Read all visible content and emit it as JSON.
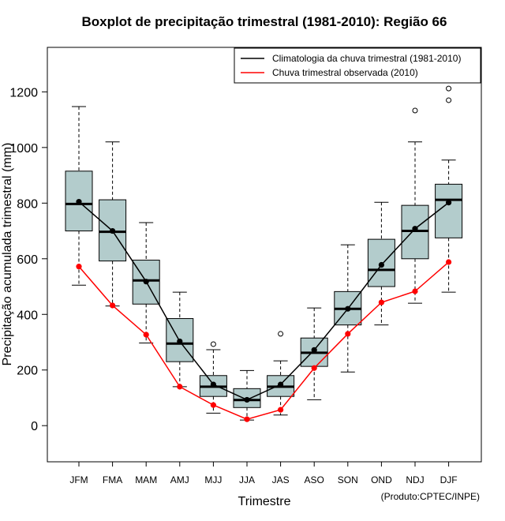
{
  "chart_data": {
    "type": "boxplot",
    "title": "Boxplot de precipitação trimestral (1981-2010): Região 66",
    "xlabel": "Trimestre",
    "ylabel": "Precipitação acumulada trimestral (mm)",
    "ylim": [
      -130,
      1360
    ],
    "yticks": [
      0,
      200,
      400,
      600,
      800,
      1000,
      1200
    ],
    "categories": [
      "JFM",
      "FMA",
      "MAM",
      "AMJ",
      "MJJ",
      "JJA",
      "JAS",
      "ASO",
      "SON",
      "OND",
      "NDJ",
      "DJF"
    ],
    "boxes": [
      {
        "min": 505,
        "q1": 700,
        "median": 797,
        "q3": 915,
        "max": 1147,
        "outliers": []
      },
      {
        "min": 430,
        "q1": 592,
        "median": 697,
        "q3": 812,
        "max": 1020,
        "outliers": []
      },
      {
        "min": 297,
        "q1": 437,
        "median": 522,
        "q3": 595,
        "max": 730,
        "outliers": []
      },
      {
        "min": 140,
        "q1": 230,
        "median": 295,
        "q3": 385,
        "max": 480,
        "outliers": []
      },
      {
        "min": 45,
        "q1": 105,
        "median": 140,
        "q3": 180,
        "max": 273,
        "outliers": [
          293
        ]
      },
      {
        "min": 20,
        "q1": 65,
        "median": 92,
        "q3": 133,
        "max": 198,
        "outliers": []
      },
      {
        "min": 38,
        "q1": 105,
        "median": 140,
        "q3": 180,
        "max": 233,
        "outliers": [
          330
        ]
      },
      {
        "min": 93,
        "q1": 213,
        "median": 262,
        "q3": 315,
        "max": 423,
        "outliers": []
      },
      {
        "min": 193,
        "q1": 362,
        "median": 420,
        "q3": 482,
        "max": 650,
        "outliers": []
      },
      {
        "min": 362,
        "q1": 500,
        "median": 560,
        "q3": 670,
        "max": 803,
        "outliers": []
      },
      {
        "min": 440,
        "q1": 600,
        "median": 700,
        "q3": 792,
        "max": 1020,
        "outliers": [
          1133
        ]
      },
      {
        "min": 480,
        "q1": 675,
        "median": 812,
        "q3": 868,
        "max": 955,
        "outliers": [
          1170,
          1212
        ]
      }
    ],
    "series": [
      {
        "name": "Climatologia da chuva trimestral (1981-2010)",
        "color": "#000000",
        "values": [
          805,
          700,
          518,
          303,
          148,
          93,
          148,
          272,
          420,
          578,
          708,
          802
        ]
      },
      {
        "name": "Chuva trimestral observada (2010)",
        "color": "#ff0000",
        "values": [
          572,
          432,
          327,
          140,
          74,
          23,
          57,
          207,
          330,
          443,
          483,
          588
        ]
      }
    ],
    "box_fill": "#b3cccc",
    "legend_position": "top-right",
    "credit": "(Produto:CPTEC/INPE)"
  }
}
